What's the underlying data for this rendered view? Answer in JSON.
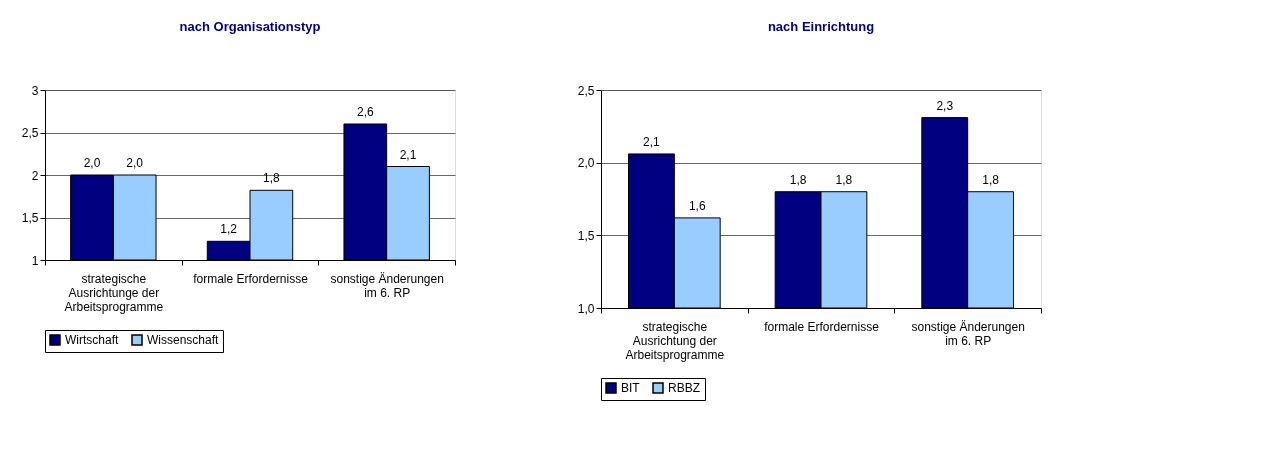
{
  "chart_data": [
    {
      "type": "bar",
      "title": "nach Organisationstyp",
      "categories": [
        "strategische Ausrichtunge der Arbeitsprogramme",
        "formale Erfordernisse",
        "sonstige Änderungen im 6. RP"
      ],
      "series": [
        {
          "name": "Wirtschaft",
          "color": "#000080",
          "values": [
            2.0,
            1.22,
            2.6
          ],
          "value_labels": [
            "2,0",
            "1,2",
            "2,6"
          ]
        },
        {
          "name": "Wissenschaft",
          "color": "#99ccff",
          "values": [
            2.0,
            1.82,
            2.1
          ],
          "value_labels": [
            "2,0",
            "1,8",
            "2,1"
          ]
        }
      ],
      "ylim": [
        1,
        3
      ],
      "yticks": [
        1,
        {
          "value": 1.5,
          "label": "1,5"
        },
        2,
        {
          "value": 2.5,
          "label": "2,5"
        },
        3
      ],
      "grid": "y",
      "legend": "bottom"
    },
    {
      "type": "bar",
      "title": "nach Einrichtung",
      "categories": [
        "strategische Ausrichtung der Arbeitsprogramme",
        "formale Erfordernisse",
        "sonstige Änderungen im 6. RP"
      ],
      "series": [
        {
          "name": "BIT",
          "color": "#000080",
          "values": [
            2.06,
            1.8,
            2.31
          ],
          "value_labels": [
            "2,1",
            "1,8",
            "2,3"
          ]
        },
        {
          "name": "RBBZ",
          "color": "#99ccff",
          "values": [
            1.62,
            1.8,
            1.8
          ],
          "value_labels": [
            "1,6",
            "1,8",
            "1,8"
          ]
        }
      ],
      "ylim": [
        1.0,
        2.5
      ],
      "yticks": [
        {
          "value": 1.0,
          "label": "1,0"
        },
        {
          "value": 1.5,
          "label": "1,5"
        },
        {
          "value": 2.0,
          "label": "2,0"
        },
        {
          "value": 2.5,
          "label": "2,5"
        }
      ],
      "grid": "y",
      "legend": "bottom"
    }
  ]
}
